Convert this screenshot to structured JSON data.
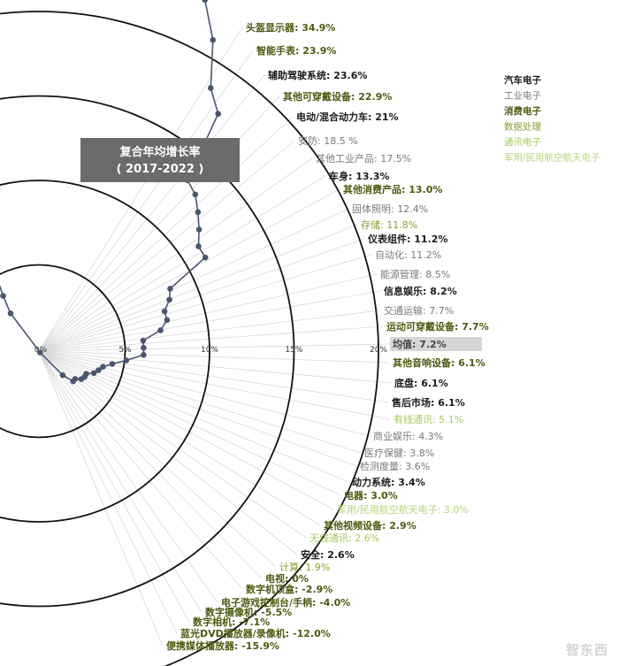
{
  "chart_data": {
    "type": "radial-line",
    "title": "复合年均增长率",
    "subtitle": "( 2017-2022 )",
    "radial_axis": {
      "ticks": [
        0,
        5,
        10,
        15,
        20
      ],
      "tick_labels": [
        "0%",
        "5%",
        "10%",
        "15%",
        "20%"
      ],
      "range": [
        -20,
        35
      ]
    },
    "series": [
      {
        "label": "头盔显示器",
        "value_text": "34.9%",
        "value": 34.9,
        "category": "consumer"
      },
      {
        "label": "智能手表",
        "value_text": "23.9%",
        "value": 23.9,
        "category": "consumer"
      },
      {
        "label": "辅助驾驶系统",
        "value_text": "23.6%",
        "value": 23.6,
        "category": "auto"
      },
      {
        "label": "其他可穿戴设备",
        "value_text": "22.9%",
        "value": 22.9,
        "category": "consumer"
      },
      {
        "label": "电动/混合动力车",
        "value_text": "21%",
        "value": 21.0,
        "category": "auto"
      },
      {
        "label": "安防",
        "value_text": "18.5 %",
        "value": 18.5,
        "category": "industrial"
      },
      {
        "label": "其他工业产品",
        "value_text": "17.5%",
        "value": 17.5,
        "category": "industrial"
      },
      {
        "label": "车身",
        "value_text": "13.3%",
        "value": 13.3,
        "category": "auto"
      },
      {
        "label": "其他消费产品",
        "value_text": "13.0%",
        "value": 13.0,
        "category": "consumer"
      },
      {
        "label": "固体照明",
        "value_text": "12.4%",
        "value": 12.4,
        "category": "industrial"
      },
      {
        "label": "存储",
        "value_text": "11.8%",
        "value": 11.8,
        "category": "data"
      },
      {
        "label": "仪表组件",
        "value_text": "11.2%",
        "value": 11.2,
        "category": "auto"
      },
      {
        "label": "自动化",
        "value_text": "11.2%",
        "value": 11.2,
        "category": "industrial"
      },
      {
        "label": "能源管理",
        "value_text": "8.5%",
        "value": 8.5,
        "category": "industrial"
      },
      {
        "label": "信息娱乐",
        "value_text": "8.2%",
        "value": 8.2,
        "category": "auto"
      },
      {
        "label": "交通运输",
        "value_text": "7.7%",
        "value": 7.7,
        "category": "industrial"
      },
      {
        "label": "运动可穿戴设备",
        "value_text": "7.7%",
        "value": 7.7,
        "category": "consumer"
      },
      {
        "label": "均值",
        "value_text": "7.2%",
        "value": 7.2,
        "category": "mean"
      },
      {
        "label": "其他音响设备",
        "value_text": "6.1%",
        "value": 6.1,
        "category": "consumer"
      },
      {
        "label": "底盘",
        "value_text": "6.1%",
        "value": 6.1,
        "category": "auto"
      },
      {
        "label": "售后市场",
        "value_text": "6.1%",
        "value": 6.1,
        "category": "auto"
      },
      {
        "label": "有线通讯",
        "value_text": "5.1%",
        "value": 5.1,
        "category": "comm"
      },
      {
        "label": "商业娱乐",
        "value_text": "4.3%",
        "value": 4.3,
        "category": "industrial"
      },
      {
        "label": "医疗保健",
        "value_text": "3.8%",
        "value": 3.8,
        "category": "industrial"
      },
      {
        "label": "检测度量",
        "value_text": "3.6%",
        "value": 3.6,
        "category": "industrial"
      },
      {
        "label": "动力系统",
        "value_text": "3.4%",
        "value": 3.4,
        "category": "auto"
      },
      {
        "label": "电器",
        "value_text": "3.0%",
        "value": 3.0,
        "category": "consumer"
      },
      {
        "label": "军用/民用航空航天电子",
        "value_text": "3.0%",
        "value": 3.0,
        "category": "mil"
      },
      {
        "label": "其他视频设备",
        "value_text": "2.9%",
        "value": 2.9,
        "category": "consumer"
      },
      {
        "label": "无线通讯",
        "value_text": "2.6%",
        "value": 2.6,
        "category": "comm"
      },
      {
        "label": "安全",
        "value_text": "2.6%",
        "value": 2.6,
        "category": "auto"
      },
      {
        "label": "计算",
        "value_text": "1.9%",
        "value": 1.9,
        "category": "data"
      },
      {
        "label": "电视",
        "value_text": "0%",
        "value": 0.0,
        "category": "consumer"
      },
      {
        "label": "数字机顶盒",
        "value_text": "-2.9%",
        "value": -2.9,
        "category": "consumer"
      },
      {
        "label": "电子游戏控制台/手柄",
        "value_text": "-4.0%",
        "value": -4.0,
        "category": "consumer"
      },
      {
        "label": "数字摄像机",
        "value_text": "-5.5%",
        "value": -5.5,
        "category": "consumer"
      },
      {
        "label": "数字相机",
        "value_text": "-7.1%",
        "value": -7.1,
        "category": "consumer"
      },
      {
        "label": "蓝光DVD播放器/录像机",
        "value_text": "-12.0%",
        "value": -12.0,
        "category": "consumer"
      },
      {
        "label": "便携媒体播放器",
        "value_text": "-15.9%",
        "value": -15.9,
        "category": "consumer"
      }
    ],
    "legend": [
      {
        "name": "汽车电子",
        "key": "auto"
      },
      {
        "name": "工业电子",
        "key": "industrial"
      },
      {
        "name": "消费电子",
        "key": "consumer"
      },
      {
        "name": "数据处理",
        "key": "data"
      },
      {
        "name": "通讯电子",
        "key": "comm"
      },
      {
        "name": "军用/民用航空航天电子",
        "key": "mil"
      }
    ],
    "colors": {
      "auto": "#1a1a1a",
      "industrial": "#7a7a7a",
      "consumer": "#4a5a10",
      "data": "#8a9e2e",
      "comm": "#a6c95c",
      "mil": "#b6d37a",
      "mean": "#444444",
      "line": "#4a5670",
      "ring": "#111111",
      "spoke": "#d8d8d8",
      "title_box": "#6b6b6b"
    }
  },
  "watermark": "智东西"
}
